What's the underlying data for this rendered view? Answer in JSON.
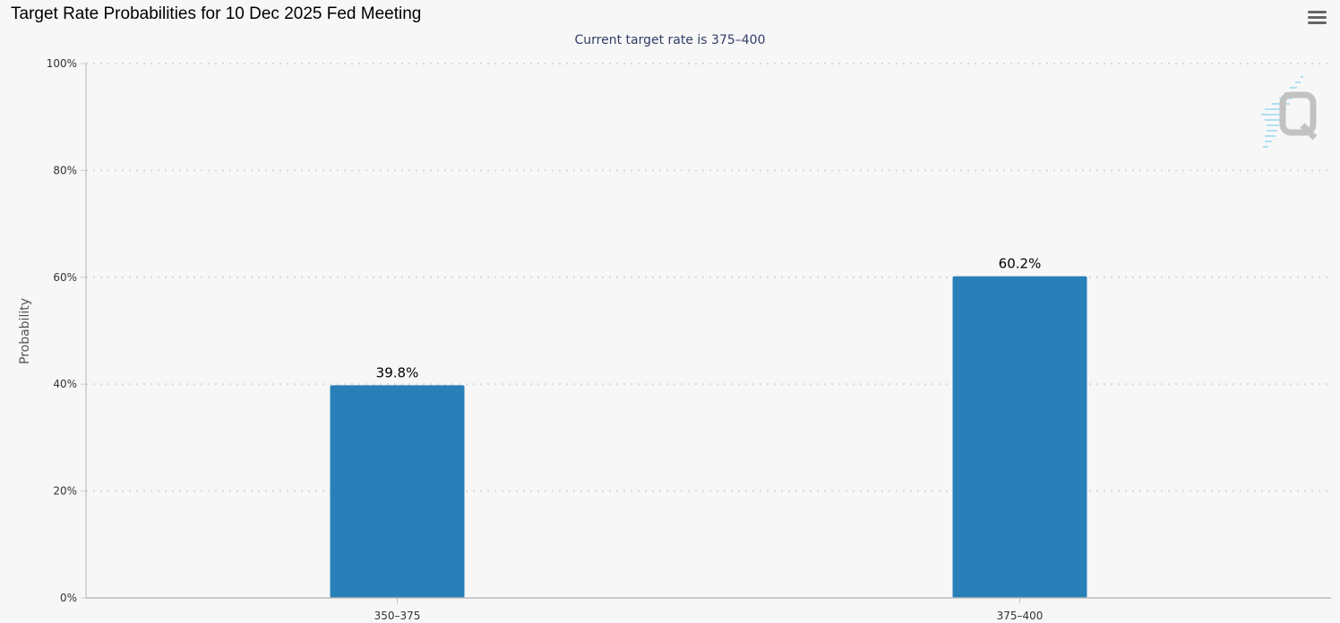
{
  "header": {
    "title": "Target Rate Probabilities for 10 Dec 2025 Fed Meeting",
    "subtitle": "Current target rate is 375–400"
  },
  "toolbar": {
    "menu_icon": "hamburger-menu-icon"
  },
  "chart_data": {
    "type": "bar",
    "title": "Target Rate Probabilities for 10 Dec 2025 Fed Meeting",
    "subtitle": "Current target rate is 375–400",
    "xlabel": "",
    "ylabel": "Probability",
    "categories": [
      "350–375",
      "375–400"
    ],
    "values": [
      39.8,
      60.2
    ],
    "data_labels": [
      "39.8%",
      "60.2%"
    ],
    "ylim": [
      0,
      100
    ],
    "yticks": [
      0,
      20,
      40,
      60,
      80,
      100
    ],
    "ytick_labels": [
      "0%",
      "20%",
      "40%",
      "60%",
      "80%",
      "100%"
    ],
    "grid": "horizontal dotted",
    "legend": "none",
    "bar_color": "#2980b9"
  }
}
